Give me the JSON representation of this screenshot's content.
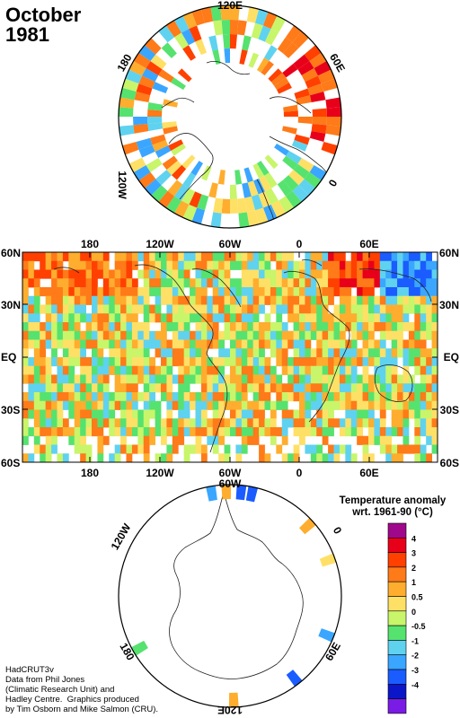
{
  "title": {
    "month": "October",
    "year": "1981"
  },
  "north_polar": {
    "labels": [
      "120E",
      "60E",
      "0",
      "120W",
      "180"
    ]
  },
  "equatorial": {
    "top_lon_labels": [
      "180",
      "120W",
      "60W",
      "0",
      "60E"
    ],
    "bottom_lon_labels": [
      "180",
      "120W",
      "60W",
      "0",
      "60E"
    ],
    "lat_labels": [
      "60N",
      "30N",
      "EQ",
      "30S",
      "60S"
    ]
  },
  "south_polar": {
    "labels": [
      "60W",
      "0",
      "60E",
      "120E",
      "180",
      "120W"
    ]
  },
  "legend": {
    "title_line1": "Temperature anomaly",
    "title_line2": "wrt. 1961-90  (°C)",
    "bins": [
      {
        "color": "#a0088c"
      },
      {
        "label": "4",
        "color": "#e8001a"
      },
      {
        "label": "3",
        "color": "#ff4000"
      },
      {
        "label": "2",
        "color": "#ff7a18"
      },
      {
        "label": "1",
        "color": "#ffad2e"
      },
      {
        "label": "0.5",
        "color": "#ffe066"
      },
      {
        "label": "0",
        "color": "#c8f56a"
      },
      {
        "label": "-0.5",
        "color": "#56e26e"
      },
      {
        "label": "-1",
        "color": "#5fd2f0"
      },
      {
        "label": "-2",
        "color": "#3aa6ff"
      },
      {
        "label": "-3",
        "color": "#1a5cff"
      },
      {
        "label": "-4",
        "color": "#0b16c8"
      },
      {
        "color": "#7a1ce6"
      }
    ]
  },
  "credits": {
    "line1": "HadCRUT3v",
    "line2": "Data from Phil Jones",
    "line3": "(Climatic Research Unit) and",
    "line4": "Hadley Centre.  Graphics produced",
    "line5": "by Tim Osborn and Mike Salmon (CRU)."
  }
}
